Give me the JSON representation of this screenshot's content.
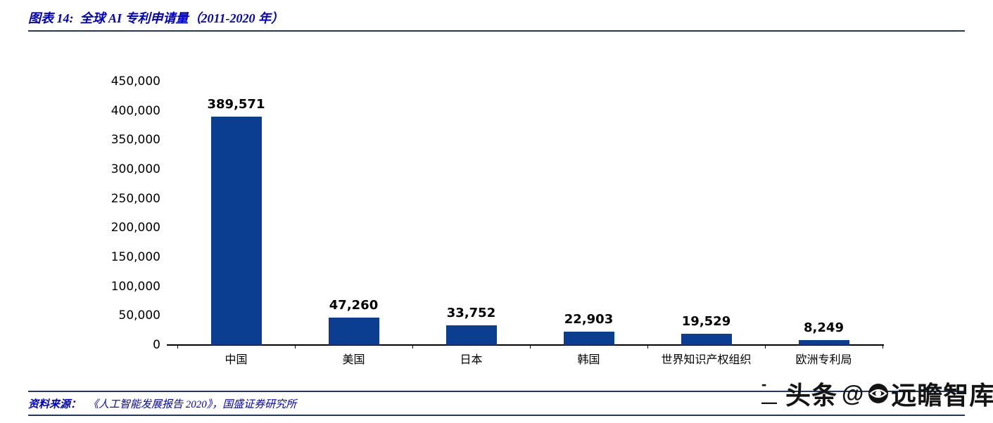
{
  "header": {
    "figure_label": "图表 14:",
    "title": "全球 AI 专利申请量（2011-2020 年）",
    "full_title": "图表 14:  全球 AI 专利申请量（2011-2020 年）"
  },
  "footer": {
    "source_label": "资料来源：",
    "source_text": "《人工智能发展报告 2020》，国盛证券研究所"
  },
  "watermark": {
    "dashes": "- —",
    "brand_left": "头条",
    "at_sign": "@",
    "brand_right": "远瞻智库"
  },
  "colors": {
    "bar": "#0b3d91",
    "rule": "#1f3864",
    "title_text": "#0000cc",
    "axis": "#000000",
    "watermark_text": "#141414"
  },
  "chart_data": {
    "type": "bar",
    "title": "全球 AI 专利申请量（2011-2020 年）",
    "categories": [
      "中国",
      "美国",
      "日本",
      "韩国",
      "世界知识产权组织",
      "欧洲专利局"
    ],
    "values": [
      389571,
      47260,
      33752,
      22903,
      19529,
      8249
    ],
    "value_labels": [
      "389,571",
      "47,260",
      "33,752",
      "22,903",
      "19,529",
      "8,249"
    ],
    "xlabel": "",
    "ylabel": "",
    "ylim": [
      0,
      450000
    ],
    "ytick_interval": 50000,
    "ytick_labels": [
      "450,000",
      "400,000",
      "350,000",
      "300,000",
      "250,000",
      "200,000",
      "150,000",
      "100,000",
      "50,000",
      "0"
    ],
    "grid": false,
    "legend": "none",
    "bar_color": "#0b3d91"
  }
}
